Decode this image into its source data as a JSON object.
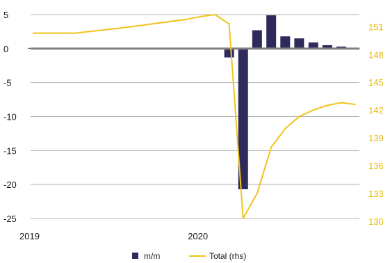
{
  "chart_data": {
    "type": "bar+line",
    "title": "",
    "xlabel": "",
    "ylabel": "",
    "colors": {
      "bar": "#2e2a5c",
      "line": "#f0c419",
      "right_axis": "#e6b800",
      "grid": "#b3b3b3",
      "zero": "#808080"
    },
    "left_axis": {
      "ylim": [
        -25,
        5
      ],
      "ticks": [
        5,
        0,
        -5,
        -10,
        -15,
        -20,
        -25
      ],
      "tick_labels": [
        "5",
        "0",
        "-5",
        "-10",
        "-15",
        "-20",
        "-25"
      ]
    },
    "right_axis": {
      "ylim": [
        130,
        152
      ],
      "ticks": [
        151,
        148,
        145,
        142,
        139,
        136,
        133,
        130
      ],
      "tick_labels": [
        "151",
        "148",
        "145",
        "142",
        "139",
        "136",
        "133",
        "130"
      ]
    },
    "x_axis": {
      "tick_labels": [
        "2019",
        "2020"
      ],
      "range": [
        2019.0,
        2020.92
      ]
    },
    "grid": true,
    "legend": {
      "placement": "bottom"
    },
    "series": [
      {
        "name": "m/m",
        "type": "bar",
        "axis": "left",
        "x": [
          2019.0,
          2019.083,
          2019.167,
          2019.25,
          2019.333,
          2019.417,
          2019.5,
          2019.583,
          2019.667,
          2019.75,
          2019.833,
          2019.917,
          2020.0,
          2020.083,
          2020.167,
          2020.25,
          2020.333,
          2020.417,
          2020.5,
          2020.583,
          2020.667,
          2020.75,
          2020.833,
          2020.917
        ],
        "values": [
          0.1,
          0.1,
          0.1,
          0.1,
          0.1,
          0.1,
          0.1,
          0.1,
          0.1,
          0.1,
          0.1,
          0.1,
          0.1,
          0.1,
          -1.3,
          -20.7,
          2.7,
          4.9,
          1.8,
          1.5,
          0.9,
          0.5,
          0.3,
          0.0
        ]
      },
      {
        "name": "Total (rhs)",
        "type": "line",
        "axis": "right",
        "x": [
          2019.0,
          2019.25,
          2019.5,
          2019.667,
          2019.917,
          2020.0,
          2020.083,
          2020.167,
          2020.25,
          2020.333,
          2020.417,
          2020.5,
          2020.583,
          2020.667,
          2020.75,
          2020.833,
          2020.917
        ],
        "values": [
          150.3,
          150.3,
          150.8,
          151.2,
          151.8,
          152.1,
          152.3,
          151.3,
          130.3,
          133.0,
          138.0,
          140.0,
          141.3,
          142.0,
          142.5,
          142.8,
          142.6
        ]
      }
    ]
  }
}
